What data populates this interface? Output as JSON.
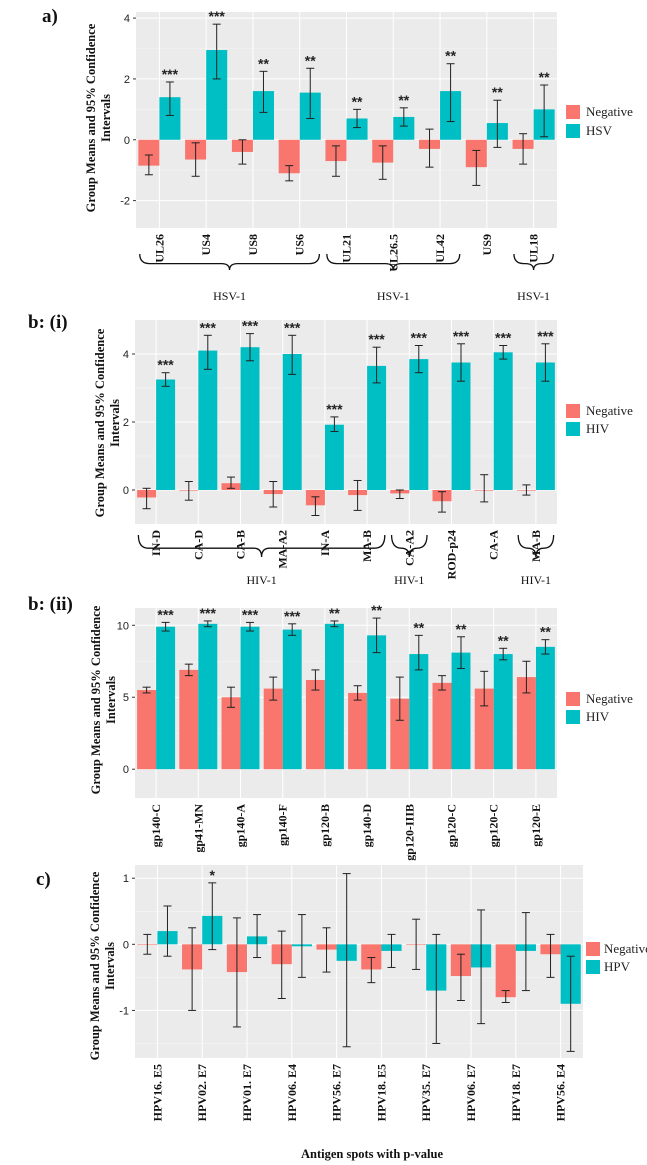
{
  "colors": {
    "negative": "#f8766d",
    "positive": "#00bfc4"
  },
  "x_axis_title": "Antigen spots with p-value",
  "chart_data": [
    {
      "panel_label": "a)",
      "type": "bar",
      "ylabel_lines": [
        "Group Means and 95% Confidence",
        "Intervals"
      ],
      "ylim": [
        -2.9,
        4.2
      ],
      "yticks": [
        -2,
        0,
        2,
        4
      ],
      "grid": true,
      "legend_position": "right",
      "categories": [
        "UL26",
        "US4",
        "US8",
        "US6",
        "UL21",
        "UL26.5",
        "UL42",
        "US9",
        "UL18"
      ],
      "series": [
        {
          "name": "Negative",
          "values": [
            -0.85,
            -0.65,
            -0.4,
            -1.1,
            -0.7,
            -0.75,
            -0.3,
            -0.9,
            -0.3
          ],
          "ci_low": [
            -1.15,
            -1.2,
            -0.8,
            -1.35,
            -1.2,
            -1.3,
            -0.9,
            -1.5,
            -0.8
          ],
          "ci_high": [
            -0.5,
            -0.1,
            0.0,
            -0.85,
            -0.2,
            -0.2,
            0.35,
            -0.35,
            0.2
          ]
        },
        {
          "name": "HSV",
          "values": [
            1.4,
            2.95,
            1.6,
            1.55,
            0.7,
            0.75,
            1.6,
            0.55,
            1.0
          ],
          "ci_low": [
            0.8,
            2.0,
            0.9,
            0.7,
            0.4,
            0.45,
            0.6,
            -0.25,
            0.1
          ],
          "ci_high": [
            1.9,
            3.8,
            2.25,
            2.35,
            1.0,
            1.05,
            2.5,
            1.3,
            1.8
          ]
        }
      ],
      "significance": [
        "***",
        "***",
        "**",
        "**",
        "**",
        "**",
        "**",
        "**",
        "**"
      ],
      "groups": [
        {
          "label": "HSV-1",
          "from": 0,
          "to": 3
        },
        {
          "label": "HSV-1",
          "from": 4,
          "to": 6
        },
        {
          "label": "HSV-1",
          "from": 8,
          "to": 8
        }
      ]
    },
    {
      "panel_label": "b: (i)",
      "type": "bar",
      "ylabel_lines": [
        "Group Means and 95% Confidence",
        "Intervals"
      ],
      "ylim": [
        -1.0,
        5.0
      ],
      "yticks": [
        0,
        2,
        4
      ],
      "grid": true,
      "legend_position": "right",
      "categories": [
        "IN-D",
        "CA-D",
        "CA-B",
        "MA-A2",
        "IN-A",
        "MA-B",
        "CA-A2",
        "ROD-p24",
        "CA-A",
        "MA-B"
      ],
      "series": [
        {
          "name": "Negative",
          "values": [
            -0.22,
            0.0,
            0.2,
            -0.12,
            -0.45,
            -0.15,
            -0.1,
            -0.33,
            0.0,
            0.0
          ],
          "ci_low": [
            -0.55,
            -0.3,
            0.05,
            -0.5,
            -0.75,
            -0.6,
            -0.25,
            -0.65,
            -0.35,
            -0.15
          ],
          "ci_high": [
            0.05,
            0.25,
            0.38,
            0.25,
            -0.2,
            0.28,
            0.0,
            -0.05,
            0.45,
            0.15
          ]
        },
        {
          "name": "HIV",
          "values": [
            3.25,
            4.1,
            4.2,
            4.0,
            1.92,
            3.65,
            3.85,
            3.75,
            4.05,
            3.75
          ],
          "ci_low": [
            3.05,
            3.55,
            3.8,
            3.4,
            1.72,
            3.15,
            3.45,
            3.2,
            3.85,
            3.2
          ],
          "ci_high": [
            3.45,
            4.55,
            4.6,
            4.55,
            2.15,
            4.2,
            4.25,
            4.3,
            4.25,
            4.3
          ]
        }
      ],
      "significance": [
        "***",
        "***",
        "***",
        "***",
        "***",
        "***",
        "***",
        "***",
        "***",
        "***"
      ],
      "groups": [
        {
          "label": "HIV-1",
          "from": 0,
          "to": 5
        },
        {
          "label": "HIV-1",
          "from": 6,
          "to": 6
        },
        {
          "label": "HIV-1",
          "from": 9,
          "to": 9
        }
      ]
    },
    {
      "panel_label": "b: (ii)",
      "type": "bar",
      "ylabel_lines": [
        "Group Means and 95% Confidence",
        "Intervals"
      ],
      "ylim": [
        -2.0,
        11.2
      ],
      "yticks": [
        0,
        5,
        10
      ],
      "grid": true,
      "legend_position": "right",
      "categories": [
        "gp140-C",
        "gp41-MN",
        "gp140-A",
        "gp140-F",
        "gp120-B",
        "gp140-D",
        "gp120-IIIB",
        "gp120-C",
        "gp120-C",
        "gp120-E"
      ],
      "series": [
        {
          "name": "Negative",
          "values": [
            5.5,
            6.9,
            5.0,
            5.6,
            6.2,
            5.3,
            4.9,
            6.0,
            5.6,
            6.4
          ],
          "ci_low": [
            5.3,
            6.5,
            4.3,
            4.8,
            5.5,
            4.8,
            3.4,
            5.5,
            4.4,
            5.3
          ],
          "ci_high": [
            5.7,
            7.3,
            5.7,
            6.4,
            6.9,
            5.8,
            6.4,
            6.5,
            6.8,
            7.5
          ]
        },
        {
          "name": "HIV",
          "values": [
            9.9,
            10.1,
            9.9,
            9.7,
            10.1,
            9.3,
            8.0,
            8.1,
            8.0,
            8.5
          ],
          "ci_low": [
            9.6,
            9.9,
            9.6,
            9.3,
            9.9,
            8.1,
            6.9,
            7.0,
            7.6,
            8.0
          ],
          "ci_high": [
            10.2,
            10.3,
            10.2,
            10.1,
            10.3,
            10.5,
            9.3,
            9.2,
            8.4,
            9.0
          ]
        }
      ],
      "significance": [
        "***",
        "***",
        "***",
        "***",
        "**",
        "**",
        "**",
        "**",
        "**",
        "**"
      ],
      "groups": []
    },
    {
      "panel_label": "c)",
      "type": "bar",
      "ylabel_lines": [
        "Group Means and 95% Confidence",
        "Intervals"
      ],
      "ylim": [
        -1.72,
        1.2
      ],
      "yticks": [
        -1,
        0,
        1
      ],
      "grid": true,
      "legend_position": "right",
      "categories": [
        "HPV16. E5",
        "HPV02. E7",
        "HPV01. E7",
        "HPV06. E4",
        "HPV56. E7",
        "HPV18. E5",
        "HPV35. E7",
        "HPV06. E7",
        "HPV18. E7",
        "HPV56. E4"
      ],
      "series": [
        {
          "name": "Negative",
          "values": [
            0.0,
            -0.38,
            -0.42,
            -0.3,
            -0.08,
            -0.38,
            0.0,
            -0.48,
            -0.8,
            -0.15
          ],
          "ci_low": [
            -0.15,
            -1.0,
            -1.25,
            -0.82,
            -0.42,
            -0.58,
            -0.38,
            -0.85,
            -0.88,
            -0.5
          ],
          "ci_high": [
            0.15,
            0.25,
            0.4,
            0.2,
            0.25,
            -0.2,
            0.38,
            -0.15,
            -0.7,
            0.15
          ]
        },
        {
          "name": "HPV",
          "values": [
            0.2,
            0.43,
            0.12,
            -0.03,
            -0.25,
            -0.1,
            -0.7,
            -0.35,
            -0.1,
            -0.9
          ],
          "ci_low": [
            -0.18,
            -0.08,
            -0.2,
            -0.5,
            -1.55,
            -0.35,
            -1.5,
            -1.2,
            -0.7,
            -1.62
          ],
          "ci_high": [
            0.58,
            0.93,
            0.45,
            0.45,
            1.07,
            0.15,
            0.15,
            0.52,
            0.48,
            -0.18
          ]
        }
      ],
      "significance": [
        "",
        "*",
        "",
        "",
        "",
        "",
        "",
        "",
        "",
        ""
      ],
      "groups": []
    }
  ]
}
